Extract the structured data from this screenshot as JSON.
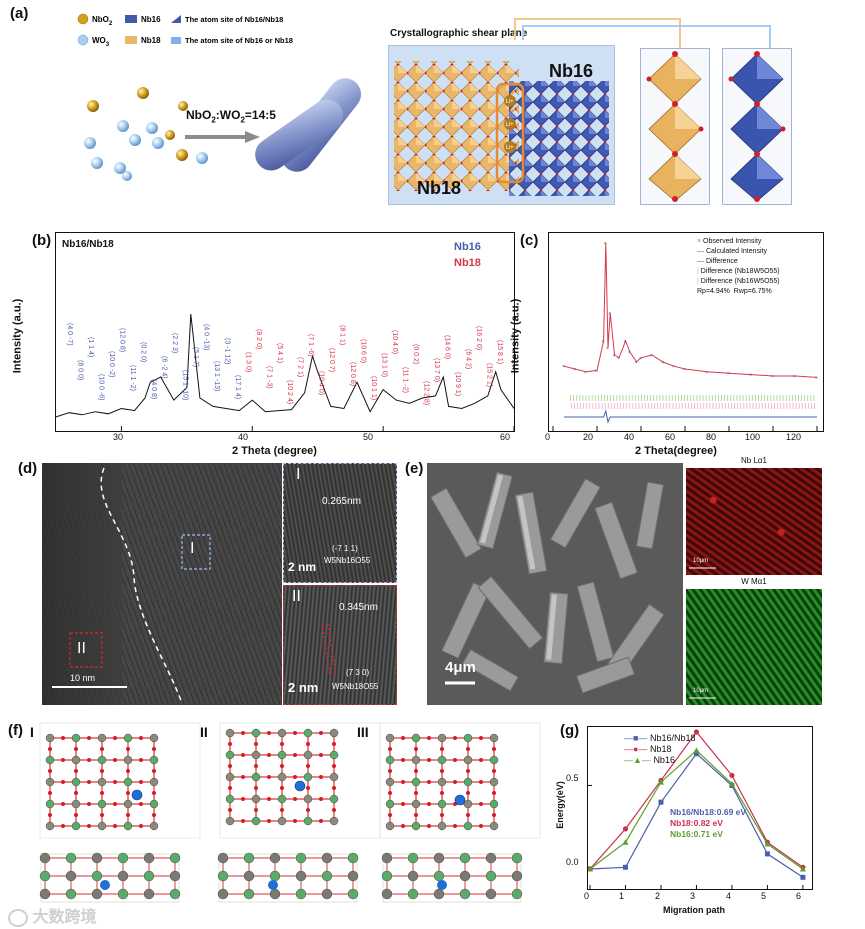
{
  "panels": {
    "a": "(a)",
    "b": "(b)",
    "c": "(c)",
    "d": "(d)",
    "e": "(e)",
    "f": "(f)",
    "g": "(g)"
  },
  "panel_a": {
    "legend": [
      {
        "label": "NbO2",
        "kind": "sphere",
        "color": "#d4a017"
      },
      {
        "label": "WO3",
        "kind": "sphere",
        "color": "#9fc8ef"
      },
      {
        "label": "Nb16",
        "kind": "square",
        "color": "#3f5aa8"
      },
      {
        "label": "Nb18",
        "kind": "square",
        "color": "#e8b868"
      },
      {
        "label": "The atom site of Nb16/Nb18",
        "kind": "triangle",
        "color": "#3f5aa8"
      },
      {
        "label": "The atom site of Nb16 or Nb18",
        "kind": "square",
        "color": "#7fb0e6"
      }
    ],
    "ratio": "NbO2:WO2=14:5",
    "shear_plane": "Crystallographic shear plane",
    "nb16_label": "Nb16",
    "nb18_label": "Nb18",
    "li_label": "Li+"
  },
  "panel_b": {
    "title": "Nb16/Nb18",
    "legend": [
      "Nb16",
      "Nb18"
    ],
    "xlabel": "2 Theta (degree)",
    "ylabel": "Intensity (a.u.)",
    "xticks": [
      "30",
      "40",
      "50",
      "60"
    ],
    "peak_labels_blue": [
      "(4 0 -7)",
      "(8 0 0)",
      "(1 1 4)",
      "(10 0 -6)",
      "(10 0 -2)",
      "(12 0 8)",
      "(11 1 -2)",
      "(0 2 0)",
      "(4 0 8)",
      "(6 -2 4)",
      "(2 2 3)",
      "(15 1 -10)",
      "(5 1 7)",
      "(4 0 -13)",
      "(13 1 -13)",
      "(3 -1 12)",
      "(17 1 4)"
    ],
    "peak_labels_red": [
      "(1 3 0)",
      "(8 2 0)",
      "(7 1 -3)",
      "(5 4 1)",
      "(10 2 4)",
      "(7 2 1)",
      "(7 1 -6)",
      "(10 4 0)",
      "(12 0 7)",
      "(8 1 1)",
      "(12 0 8)",
      "(10 6 0)",
      "(10 1 1)",
      "(13 1 0)",
      "(10 4 0)",
      "(11 1 -2)",
      "(0 0 2)",
      "(12 2 8)",
      "(13 7 0)",
      "(14 6 0)",
      "(10 9 1)",
      "(6 4 2)",
      "(16 2 0)",
      "(15 2 1)",
      "(15 8 1)"
    ],
    "chart_data": {
      "type": "line",
      "xlabel": "2 Theta (degree)",
      "ylabel": "Intensity (a.u.)",
      "xlim": [
        25,
        60
      ],
      "x": [
        25,
        26,
        27,
        28,
        29,
        30,
        31,
        31.8,
        32.2,
        33,
        34,
        35,
        35.3,
        36,
        37,
        38,
        39,
        40,
        41,
        42,
        43,
        44,
        44.6,
        45,
        46,
        47,
        48,
        49,
        50,
        51,
        52,
        53,
        54,
        54.6,
        55,
        56,
        57,
        58,
        58.6,
        59,
        60
      ],
      "y": [
        0.02,
        0.06,
        0.04,
        0.07,
        0.05,
        0.1,
        0.08,
        0.2,
        0.35,
        0.4,
        0.18,
        0.3,
        1.0,
        0.2,
        0.12,
        0.1,
        0.08,
        0.18,
        0.07,
        0.08,
        0.09,
        0.25,
        0.6,
        0.45,
        0.12,
        0.1,
        0.35,
        0.07,
        0.28,
        0.18,
        0.15,
        0.2,
        0.22,
        0.4,
        0.12,
        0.1,
        0.15,
        0.22,
        0.45,
        0.28,
        0.1
      ]
    }
  },
  "panel_c": {
    "xlabel": "2 Theta(degree)",
    "ylabel": "Intensity (a.u.)",
    "xticks": [
      "0",
      "20",
      "40",
      "60",
      "80",
      "100",
      "120"
    ],
    "legend": [
      "Observed Intensity",
      "Calculated Intensity",
      "Difference",
      "Difference (Nb18W5O55)",
      "Difference (Nb16W5O55)"
    ],
    "rp": "Rp=4.94%",
    "rwp": "Rwp=6.75%",
    "chart_data": {
      "type": "line",
      "xlabel": "2 Theta(degree)",
      "ylabel": "Intensity (a.u.)",
      "xlim": [
        0,
        120
      ],
      "x": [
        5,
        10,
        15,
        20,
        23,
        24,
        25,
        26,
        28,
        30,
        33,
        35,
        38,
        40,
        45,
        50,
        55,
        60,
        70,
        80,
        90,
        100,
        110,
        120
      ],
      "y": [
        0.12,
        0.1,
        0.08,
        0.09,
        0.3,
        1.0,
        0.25,
        0.5,
        0.2,
        0.18,
        0.3,
        0.22,
        0.15,
        0.18,
        0.2,
        0.15,
        0.12,
        0.1,
        0.08,
        0.07,
        0.06,
        0.05,
        0.05,
        0.04
      ]
    }
  },
  "panel_d": {
    "region1": "I",
    "region2": "II",
    "scale_main": "10 nm",
    "inset1_spacing": "0.265nm",
    "inset1_plane": "(-7 1 1)",
    "inset1_phase": "W5Nb16O55",
    "inset1_scale": "2 nm",
    "inset1_roman": "I",
    "inset2_spacing": "0.345nm",
    "inset2_plane": "(7 3 0)",
    "inset2_phase": "W5Nb18O55",
    "inset2_scale": "2 nm",
    "inset2_roman": "II"
  },
  "panel_e": {
    "scale": "4μm",
    "map1_title": "Nb Lα1",
    "map2_title": "W Mα1",
    "map_scale": "10μm"
  },
  "panel_f": {
    "labels": [
      "I",
      "II",
      "III"
    ]
  },
  "panel_g": {
    "xlabel": "Migration path",
    "ylabel": "Energy(eV)",
    "xticks": [
      "0",
      "1",
      "2",
      "3",
      "4",
      "5",
      "6"
    ],
    "yticks": [
      "0.0",
      "0.5"
    ],
    "annotations": [
      {
        "text": "Nb16/Nb18:0.69 eV",
        "color": "#4a5fae"
      },
      {
        "text": "Nb18:0.82 eV",
        "color": "#c8324a"
      },
      {
        "text": "Nb16:0.71 eV",
        "color": "#5aa02c"
      }
    ],
    "chart_data": {
      "type": "line",
      "xlabel": "Migration path",
      "ylabel": "Energy(eV)",
      "x": [
        0,
        1,
        2,
        3,
        4,
        5,
        6
      ],
      "xlim": [
        0,
        6.2
      ],
      "ylim": [
        -0.12,
        0.85
      ],
      "series": [
        {
          "name": "Nb16/Nb18",
          "color": "#4a5fae",
          "marker": "square",
          "values": [
            0.0,
            0.01,
            0.4,
            0.69,
            0.5,
            0.09,
            -0.05
          ]
        },
        {
          "name": "Nb18",
          "color": "#c8324a",
          "marker": "circle",
          "values": [
            0.0,
            0.24,
            0.53,
            0.82,
            0.56,
            0.16,
            0.01
          ]
        },
        {
          "name": "Nb16",
          "color": "#5aa02c",
          "marker": "triangle",
          "values": [
            0.0,
            0.16,
            0.52,
            0.71,
            0.51,
            0.15,
            0.0
          ]
        }
      ]
    }
  },
  "watermark": "大数跨境"
}
